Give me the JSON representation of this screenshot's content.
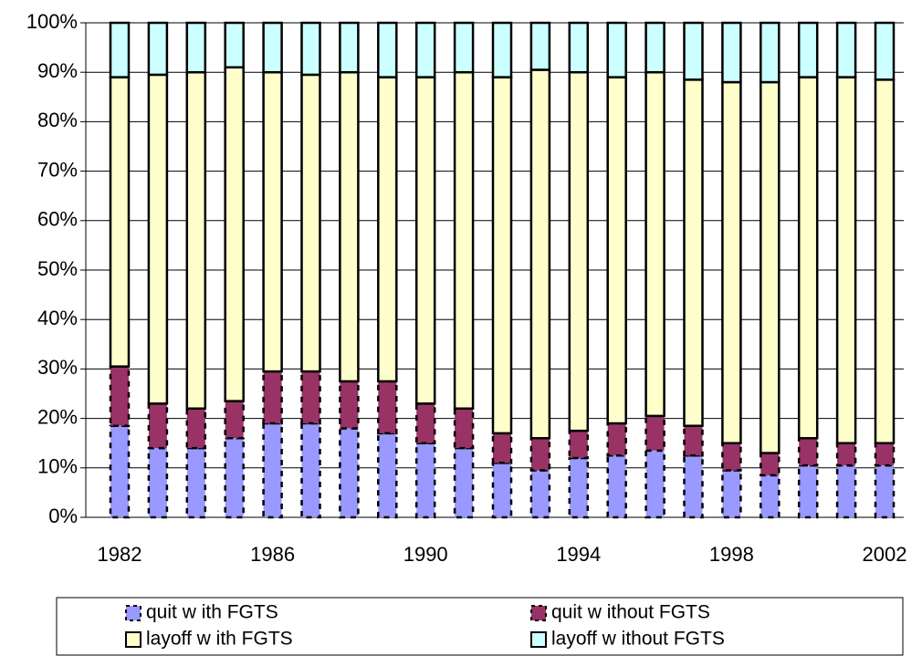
{
  "chart_data": {
    "type": "stacked_bar",
    "categories": [
      "1982",
      null,
      null,
      null,
      "1986",
      null,
      null,
      null,
      "1990",
      null,
      null,
      null,
      "1994",
      null,
      null,
      null,
      "1998",
      null,
      null,
      null,
      "2002"
    ],
    "series": [
      {
        "name": "quit w ith FGTS",
        "color": "#9999ff",
        "values": [
          18.5,
          14,
          14,
          16,
          19,
          19,
          18,
          17,
          15,
          14,
          11,
          9.5,
          12,
          12.5,
          13.5,
          12.5,
          9.5,
          8.5,
          10.5,
          10.5,
          10.5
        ]
      },
      {
        "name": "quit w ithout FGTS",
        "color": "#993366",
        "values": [
          12,
          9,
          8,
          7.5,
          10.5,
          10.5,
          9.5,
          10.5,
          8,
          8,
          6,
          6.5,
          5.5,
          6.5,
          7,
          6,
          5.5,
          4.5,
          5.5,
          4.5,
          4.5
        ]
      },
      {
        "name": "layoff w ith FGTS",
        "color": "#ffffcc",
        "values": [
          58.5,
          66.5,
          68,
          67.5,
          60.5,
          60,
          62.5,
          61.5,
          66,
          68,
          72,
          74.5,
          72.5,
          70,
          69.5,
          70,
          73,
          75,
          73,
          74,
          73.5
        ]
      },
      {
        "name": "layoff w ithout FGTS",
        "color": "#ccffff",
        "values": [
          11,
          10.5,
          10,
          9,
          10,
          10.5,
          10,
          11,
          11,
          10,
          11,
          9.5,
          10,
          11,
          10,
          11.5,
          12,
          12,
          11,
          11,
          11.5
        ]
      }
    ],
    "ylim": [
      0,
      100
    ],
    "yticks": [
      {
        "value": 0,
        "label": "0%"
      },
      {
        "value": 10,
        "label": "10%"
      },
      {
        "value": 20,
        "label": "20%"
      },
      {
        "value": 30,
        "label": "30%"
      },
      {
        "value": 40,
        "label": "40%"
      },
      {
        "value": 50,
        "label": "50%"
      },
      {
        "value": 60,
        "label": "60%"
      },
      {
        "value": 70,
        "label": "70%"
      },
      {
        "value": 80,
        "label": "80%"
      },
      {
        "value": 90,
        "label": "90%"
      },
      {
        "value": 100,
        "label": "100%"
      }
    ],
    "grid": true,
    "legend": "bottom"
  }
}
